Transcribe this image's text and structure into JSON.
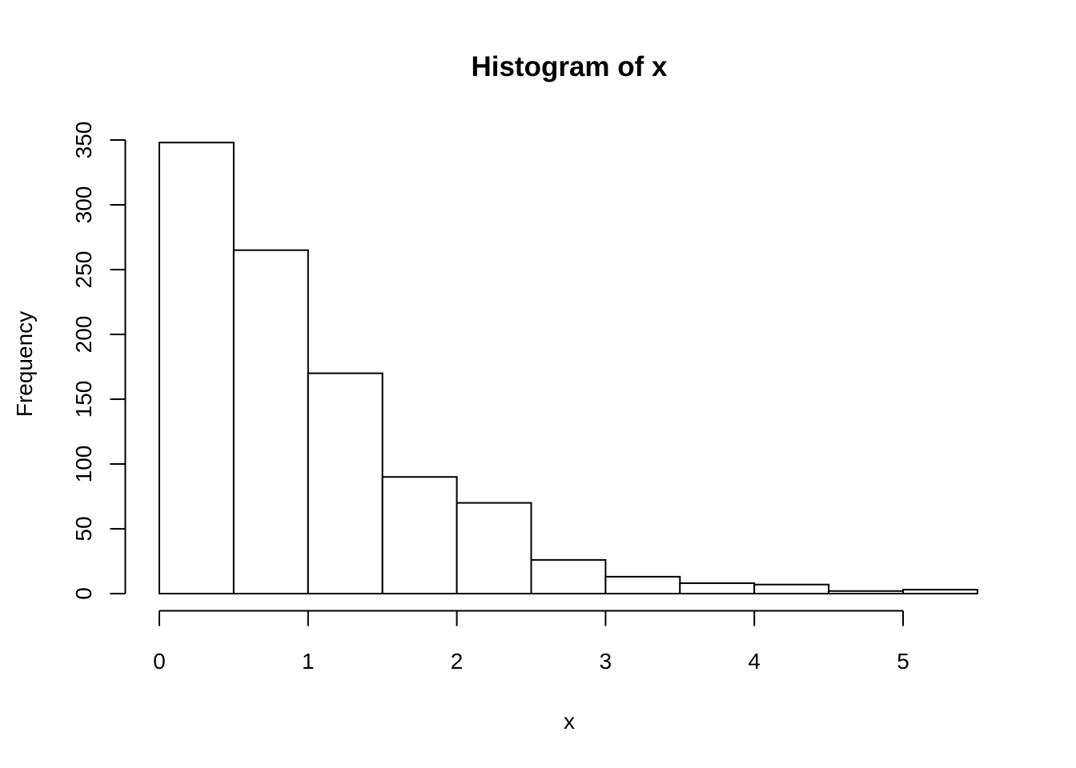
{
  "chart_data": {
    "type": "bar",
    "subtype": "histogram",
    "title": "Histogram of x",
    "xlabel": "x",
    "ylabel": "Frequency",
    "bin_edges": [
      0,
      0.5,
      1,
      1.5,
      2,
      2.5,
      3,
      3.5,
      4,
      4.5,
      5,
      5.5
    ],
    "counts": [
      348,
      265,
      170,
      90,
      70,
      26,
      13,
      8,
      7,
      2,
      3
    ],
    "x_ticks": [
      0,
      1,
      2,
      3,
      4,
      5
    ],
    "y_ticks": [
      0,
      50,
      100,
      150,
      200,
      250,
      300,
      350
    ],
    "xlim": [
      0,
      5.5
    ],
    "ylim": [
      0,
      350
    ],
    "grid": false,
    "legend": "none",
    "bar_fill": "#ffffff",
    "line_color": "#000000",
    "background": "#ffffff"
  }
}
